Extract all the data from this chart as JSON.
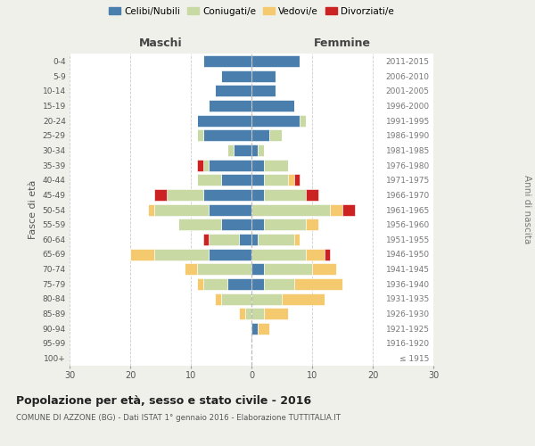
{
  "age_groups": [
    "100+",
    "95-99",
    "90-94",
    "85-89",
    "80-84",
    "75-79",
    "70-74",
    "65-69",
    "60-64",
    "55-59",
    "50-54",
    "45-49",
    "40-44",
    "35-39",
    "30-34",
    "25-29",
    "20-24",
    "15-19",
    "10-14",
    "5-9",
    "0-4"
  ],
  "birth_years": [
    "≤ 1915",
    "1916-1920",
    "1921-1925",
    "1926-1930",
    "1931-1935",
    "1936-1940",
    "1941-1945",
    "1946-1950",
    "1951-1955",
    "1956-1960",
    "1961-1965",
    "1966-1970",
    "1971-1975",
    "1976-1980",
    "1981-1985",
    "1986-1990",
    "1991-1995",
    "1996-2000",
    "2001-2005",
    "2006-2010",
    "2011-2015"
  ],
  "maschi": {
    "celibi": [
      0,
      0,
      0,
      0,
      0,
      4,
      0,
      7,
      2,
      5,
      7,
      8,
      5,
      7,
      3,
      8,
      9,
      7,
      6,
      5,
      8
    ],
    "coniugati": [
      0,
      0,
      0,
      1,
      5,
      4,
      9,
      9,
      5,
      7,
      9,
      6,
      4,
      1,
      1,
      1,
      0,
      0,
      0,
      0,
      0
    ],
    "vedovi": [
      0,
      0,
      0,
      1,
      1,
      1,
      2,
      4,
      0,
      0,
      1,
      0,
      0,
      0,
      0,
      0,
      0,
      0,
      0,
      0,
      0
    ],
    "divorziati": [
      0,
      0,
      0,
      0,
      0,
      0,
      0,
      0,
      1,
      0,
      0,
      2,
      0,
      1,
      0,
      0,
      0,
      0,
      0,
      0,
      0
    ]
  },
  "femmine": {
    "nubili": [
      0,
      0,
      1,
      0,
      0,
      2,
      2,
      0,
      1,
      2,
      0,
      2,
      2,
      2,
      1,
      3,
      8,
      7,
      4,
      4,
      8
    ],
    "coniugate": [
      0,
      0,
      0,
      2,
      5,
      5,
      8,
      9,
      6,
      7,
      13,
      7,
      4,
      4,
      1,
      2,
      1,
      0,
      0,
      0,
      0
    ],
    "vedove": [
      0,
      0,
      2,
      4,
      7,
      8,
      4,
      3,
      1,
      2,
      2,
      0,
      1,
      0,
      0,
      0,
      0,
      0,
      0,
      0,
      0
    ],
    "divorziate": [
      0,
      0,
      0,
      0,
      0,
      0,
      0,
      1,
      0,
      0,
      2,
      2,
      1,
      0,
      0,
      0,
      0,
      0,
      0,
      0,
      0
    ]
  },
  "colors": {
    "celibi": "#4a7eac",
    "coniugati": "#c8d9a4",
    "vedovi": "#f5c96e",
    "divorziati": "#cc2222"
  },
  "title": "Popolazione per età, sesso e stato civile - 2016",
  "subtitle": "COMUNE DI AZZONE (BG) - Dati ISTAT 1° gennaio 2016 - Elaborazione TUTTITALIA.IT",
  "xlabel_left": "Maschi",
  "xlabel_right": "Femmine",
  "ylabel_left": "Fasce di età",
  "ylabel_right": "Anni di nascita",
  "xlim": 30,
  "background_color": "#f0f0eb",
  "plot_background": "#ffffff"
}
